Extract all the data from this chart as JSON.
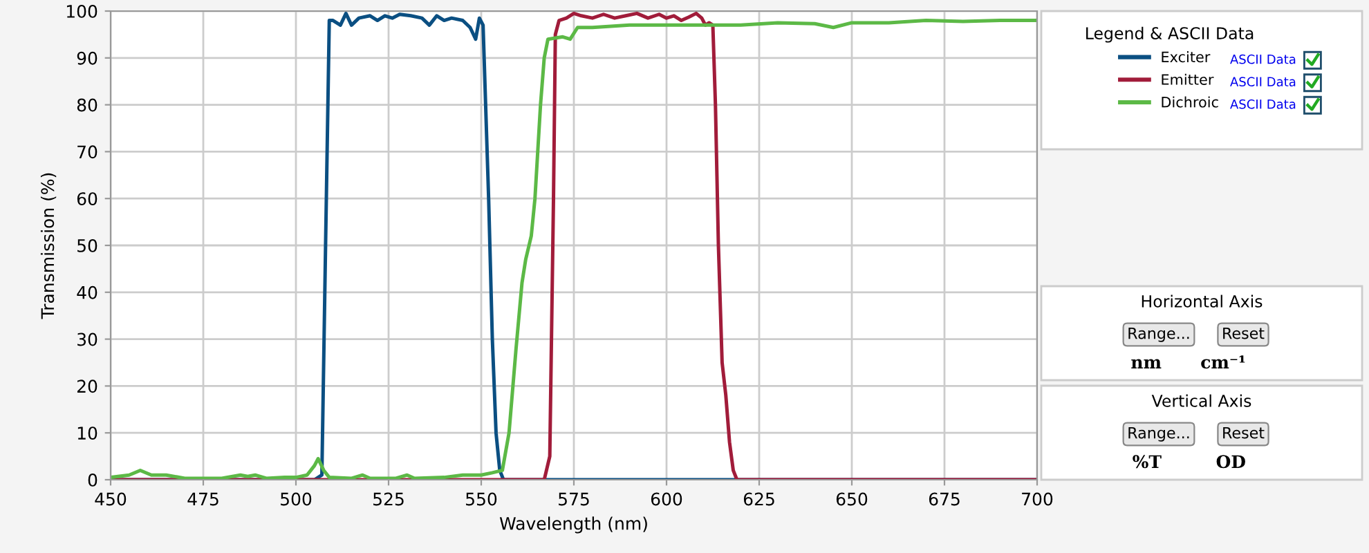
{
  "chart_data": [
    {
      "type": "line",
      "xlabel": "Wavelength (nm)",
      "ylabel": "Transmission (%)",
      "legend_title": "Legend & ASCII Data",
      "legend": "right",
      "grid": true,
      "line_style": "solid",
      "marker": "none",
      "xlim": [
        450,
        700
      ],
      "ylim": [
        0,
        100
      ],
      "xticks": [
        450,
        475,
        500,
        525,
        550,
        575,
        600,
        625,
        650,
        675,
        700
      ],
      "yticks": [
        0,
        10,
        20,
        30,
        40,
        50,
        60,
        70,
        80,
        90,
        100
      ],
      "annotations": [
        "ASCII Data",
        "ASCII Data",
        "ASCII Data"
      ],
      "series": [
        {
          "name": "Exciter",
          "color": "#0b4f82",
          "x": [
            450,
            505,
            507,
            508,
            509,
            510,
            512,
            513.5,
            515,
            517,
            520,
            522,
            524,
            526,
            528,
            531,
            534,
            536,
            538,
            540,
            542,
            545,
            547,
            548.5,
            549.5,
            550.5,
            552,
            553,
            554,
            555,
            556,
            700
          ],
          "values": [
            0,
            0,
            1,
            50,
            98,
            98,
            97,
            99.5,
            97,
            98.5,
            99,
            98,
            99,
            98.5,
            99.3,
            99,
            98.5,
            97,
            99,
            98,
            98.5,
            98,
            96.5,
            94,
            98.5,
            97,
            60,
            30,
            10,
            2,
            0,
            0
          ]
        },
        {
          "name": "Emitter",
          "color": "#a11c3a",
          "x": [
            450,
            567,
            568.5,
            569.5,
            570,
            571,
            573,
            575,
            577,
            580,
            583,
            586,
            589,
            592,
            595,
            598,
            600,
            602,
            604,
            606,
            608,
            609.5,
            610.5,
            611.5,
            612.5,
            613.2,
            614,
            615,
            616,
            617,
            618,
            619,
            700
          ],
          "values": [
            0,
            0,
            5,
            60,
            95,
            98,
            98.5,
            99.5,
            99,
            98.5,
            99.3,
            98.5,
            99,
            99.5,
            98.5,
            99.3,
            98.5,
            99,
            98,
            98.7,
            99.5,
            98.5,
            97,
            97.5,
            97,
            80,
            50,
            25,
            18,
            8,
            2,
            0,
            0
          ]
        },
        {
          "name": "Dichroic",
          "color": "#5cb946",
          "x": [
            450,
            455,
            458,
            461,
            465,
            470,
            480,
            485,
            487,
            489,
            492,
            497,
            500,
            503,
            505,
            506,
            507.5,
            509,
            515,
            518,
            520,
            527,
            530,
            532,
            540,
            545,
            550,
            553,
            555.7,
            557.5,
            559.4,
            561,
            562,
            563.5,
            564.5,
            566,
            567,
            568,
            572,
            574,
            576,
            580,
            590,
            600,
            610,
            620,
            630,
            640,
            645,
            650,
            660,
            670,
            680,
            690,
            700
          ],
          "values": [
            0.5,
            1,
            2,
            1,
            1,
            0.3,
            0.3,
            1,
            0.7,
            1,
            0.3,
            0.5,
            0.5,
            1,
            3,
            4.5,
            2,
            0.5,
            0.3,
            1,
            0.3,
            0.3,
            1,
            0.3,
            0.5,
            1,
            1,
            1.5,
            2,
            10,
            28,
            42,
            47,
            52,
            60,
            80,
            90,
            94,
            94.5,
            94,
            96.5,
            96.5,
            97,
            97,
            97,
            97,
            97.5,
            97.3,
            96.5,
            97.5,
            97.5,
            98,
            97.8,
            98,
            98
          ]
        }
      ]
    },
    {
      "type": "other",
      "title": "Horizontal Axis",
      "annotations": [
        "Range...",
        "Reset",
        "nm",
        "cm⁻¹"
      ]
    },
    {
      "type": "other",
      "title": "Vertical Axis",
      "annotations": [
        "Range...",
        "Reset",
        "%T",
        "OD"
      ]
    }
  ]
}
